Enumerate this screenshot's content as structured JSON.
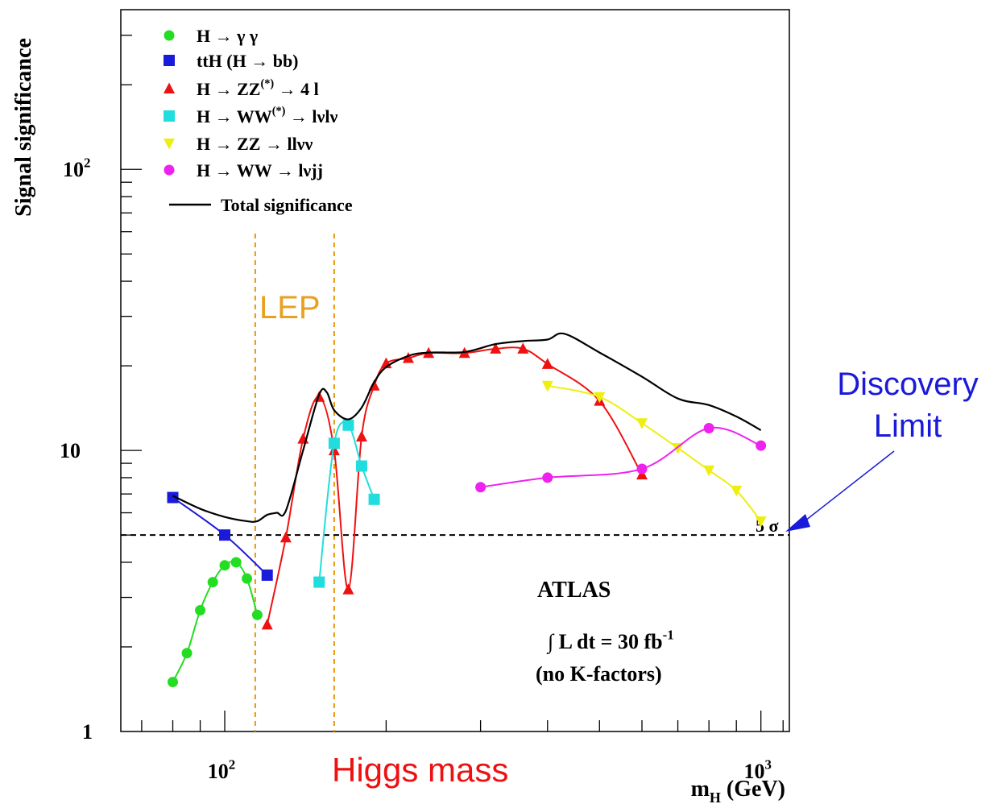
{
  "chart_data": {
    "type": "line",
    "ylabel": "Signal significance",
    "xlabel_main": "m",
    "xlabel_sub": "H",
    "xlabel_unit": " (GeV)",
    "x_scale": "log",
    "y_scale": "log",
    "xlim": [
      64,
      1130
    ],
    "ylim": [
      1,
      370
    ],
    "grid": false,
    "legend_position": "top-left",
    "x_ticks": [
      {
        "value": 100,
        "base": "10",
        "exp": "2"
      },
      {
        "value": 1000,
        "base": "10",
        "exp": "3"
      }
    ],
    "y_ticks": [
      {
        "value": 1,
        "base": "1",
        "exp": ""
      },
      {
        "value": 10,
        "base": "10",
        "exp": ""
      },
      {
        "value": 100,
        "base": "10",
        "exp": "2"
      }
    ],
    "series": [
      {
        "name": "H → γγ",
        "color": "#22dd22",
        "marker": "circle",
        "x": [
          80,
          85,
          90,
          95,
          100,
          105,
          110,
          115,
          120,
          130
        ],
        "y": [
          1.5,
          1.9,
          2.7,
          3.4,
          3.9,
          4.0,
          3.5,
          2.6,
          null,
          null
        ]
      },
      {
        "name": "ttH (H → bb)",
        "color": "#1a1adb",
        "marker": "square",
        "x": [
          80,
          100,
          120
        ],
        "y": [
          6.8,
          5.0,
          3.6
        ]
      },
      {
        "name": "H → ZZ(*) → 4 l",
        "color": "#ee1111",
        "marker": "triangle-up",
        "x": [
          120,
          130,
          140,
          150,
          160,
          170,
          180,
          190,
          200,
          220,
          240,
          280,
          320,
          360,
          400,
          500,
          600
        ],
        "y": [
          2.4,
          4.9,
          11.0,
          15.5,
          10.0,
          3.2,
          11.2,
          17.0,
          20.4,
          21.3,
          22.2,
          22.2,
          23.0,
          23.0,
          20.3,
          15.0,
          8.2
        ]
      },
      {
        "name": "H → WW(*) → lνlν",
        "color": "#22dddd",
        "marker": "square",
        "x": [
          150,
          160,
          170,
          180,
          190
        ],
        "y": [
          3.4,
          10.6,
          12.3,
          8.8,
          6.7
        ]
      },
      {
        "name": "H → ZZ → llνν",
        "color": "#eeee11",
        "marker": "triangle-down",
        "x": [
          400,
          500,
          600,
          700,
          800,
          900,
          1000
        ],
        "y": [
          17.0,
          15.5,
          12.5,
          10.2,
          8.5,
          7.2,
          5.6
        ]
      },
      {
        "name": "H → WW → lνjj",
        "color": "#ee22ee",
        "marker": "circle",
        "x": [
          300,
          400,
          600,
          800,
          1000
        ],
        "y": [
          7.4,
          8.0,
          8.6,
          12.0,
          10.4
        ]
      },
      {
        "name": "Total significance",
        "color": "#000000",
        "marker": "none",
        "x": [
          80,
          90,
          100,
          110,
          115,
          120,
          125,
          130,
          140,
          150,
          155,
          160,
          170,
          180,
          190,
          200,
          220,
          240,
          280,
          320,
          360,
          400,
          430,
          500,
          600,
          700,
          800,
          900,
          1000
        ],
        "y": [
          6.9,
          6.2,
          5.8,
          5.6,
          5.6,
          5.9,
          6.0,
          6.1,
          10.0,
          15.8,
          16.1,
          13.9,
          12.9,
          14.2,
          17.5,
          19.8,
          21.7,
          22.3,
          22.4,
          23.9,
          24.5,
          24.8,
          26.0,
          22.3,
          18.3,
          15.3,
          14.5,
          13.2,
          11.8
        ]
      }
    ],
    "legend": [
      {
        "label_base": "H  →  γ γ",
        "sup": "",
        "label_tail": ""
      },
      {
        "label_base": "ttH (H  →  bb)",
        "sup": "",
        "label_tail": ""
      },
      {
        "label_base": "H   →  ZZ",
        "sup": "(*)",
        "label_tail": "  →  4 l"
      },
      {
        "label_base": "H   →  WW",
        "sup": "(*)",
        "label_tail": "  →  lνlν"
      },
      {
        "label_base": "H   →  ZZ    →  llνν",
        "sup": "",
        "label_tail": ""
      },
      {
        "label_base": "H   →  WW    →  lνjj",
        "sup": "",
        "label_tail": ""
      },
      {
        "label_base": "Total significance",
        "sup": "",
        "label_tail": ""
      }
    ],
    "reference_line": {
      "y": 5,
      "label": "5 σ"
    },
    "lep_lines": [
      114,
      160
    ],
    "annotations": {
      "lep": "LEP",
      "higgs_mass": "Higgs mass",
      "discovery": "Discovery",
      "limit": "Limit",
      "atlas": "ATLAS",
      "lumi_prefix": "∫ L dt = 30 fb",
      "lumi_exp": "-1",
      "kfactors": "(no K-factors)"
    }
  }
}
